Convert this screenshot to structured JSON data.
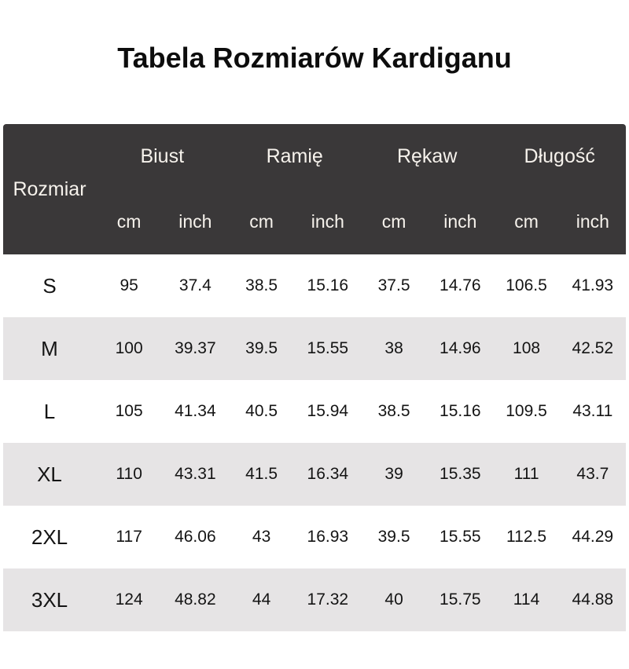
{
  "title": "Tabela Rozmiarów Kardiganu",
  "colors": {
    "header_bg": "#3A3839",
    "header_text": "#F6F2EC",
    "row_bg": "#FFFFFF",
    "row_alt_bg": "#E6E4E5"
  },
  "chart_data": {
    "type": "table",
    "title": "Tabela Rozmiarów Kardiganu",
    "size_header": "Rozmiar",
    "measure_groups": [
      "Biust",
      "Ramię",
      "Rękaw",
      "Długość"
    ],
    "units": [
      "cm",
      "inch"
    ],
    "rows": [
      {
        "size": "S",
        "values": [
          95,
          37.4,
          38.5,
          15.16,
          37.5,
          14.76,
          106.5,
          41.93
        ]
      },
      {
        "size": "M",
        "values": [
          100,
          39.37,
          39.5,
          15.55,
          38,
          14.96,
          108,
          42.52
        ]
      },
      {
        "size": "L",
        "values": [
          105,
          41.34,
          40.5,
          15.94,
          38.5,
          15.16,
          109.5,
          43.11
        ]
      },
      {
        "size": "XL",
        "values": [
          110,
          43.31,
          41.5,
          16.34,
          39,
          15.35,
          111,
          43.7
        ]
      },
      {
        "size": "2XL",
        "values": [
          117,
          46.06,
          43,
          16.93,
          39.5,
          15.55,
          112.5,
          44.29
        ]
      },
      {
        "size": "3XL",
        "values": [
          124,
          48.82,
          44,
          17.32,
          40,
          15.75,
          114,
          44.88
        ]
      }
    ]
  }
}
